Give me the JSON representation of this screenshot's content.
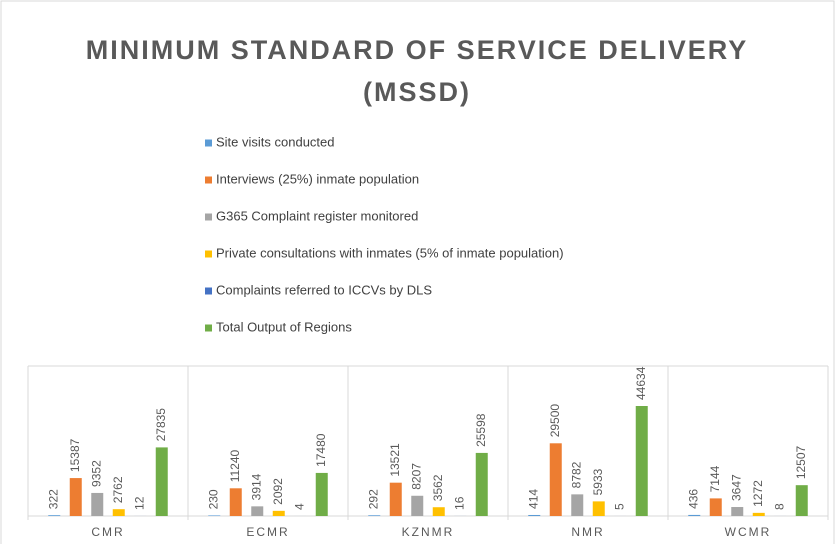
{
  "chart_data": {
    "type": "bar",
    "title": "MINIMUM STANDARD OF SERVICE DELIVERY (MSSD)",
    "categories": [
      "CMR",
      "ECMR",
      "KZNMR",
      "NMR",
      "WCMR"
    ],
    "series": [
      {
        "name": "Site visits conducted",
        "color": "#5b9bd5",
        "values": [
          322,
          230,
          292,
          414,
          436
        ]
      },
      {
        "name": "Interviews (25%) inmate population",
        "color": "#ed7d31",
        "values": [
          15387,
          11240,
          13521,
          29500,
          7144
        ]
      },
      {
        "name": "G365 Complaint register monitored",
        "color": "#a5a5a5",
        "values": [
          9352,
          3914,
          8207,
          8782,
          3647
        ]
      },
      {
        "name": "Private consultations with inmates (5% of inmate population)",
        "color": "#ffc000",
        "values": [
          2762,
          2092,
          3562,
          5933,
          1272
        ]
      },
      {
        "name": "Complaints referred to ICCVs by DLS",
        "color": "#4472c4",
        "values": [
          12,
          4,
          16,
          5,
          8
        ]
      },
      {
        "name": "Total Output of Regions",
        "color": "#70ad47",
        "values": [
          27835,
          17480,
          25598,
          44634,
          12507
        ]
      }
    ],
    "legend": "top"
  }
}
